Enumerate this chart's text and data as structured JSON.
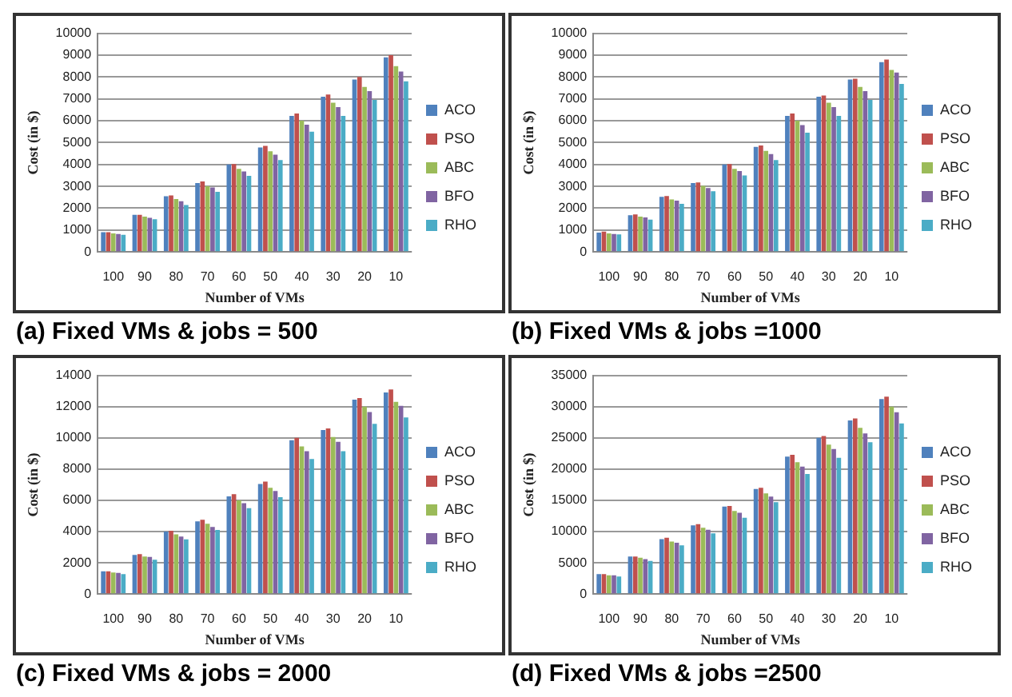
{
  "chart_data": [
    {
      "type": "bar",
      "title": "(a) Fixed VMs & jobs = 500",
      "xlabel": "Number of VMs",
      "ylabel": "Cost (in $)",
      "categories": [
        "100",
        "90",
        "80",
        "70",
        "60",
        "50",
        "40",
        "30",
        "20",
        "10"
      ],
      "ylim": [
        0,
        10000
      ],
      "yticks": [
        0,
        1000,
        2000,
        3000,
        4000,
        5000,
        6000,
        7000,
        8000,
        9000,
        10000
      ],
      "grid": "y",
      "legend": "right",
      "series": [
        {
          "name": "ACO",
          "color": "#4f81bd",
          "values": [
            900,
            1700,
            2550,
            3150,
            4000,
            4780,
            6220,
            7100,
            7880,
            8900
          ]
        },
        {
          "name": "PSO",
          "color": "#c0504d",
          "values": [
            900,
            1700,
            2580,
            3220,
            4020,
            4850,
            6330,
            7200,
            8000,
            9000
          ]
        },
        {
          "name": "ABC",
          "color": "#9bbb59",
          "values": [
            850,
            1620,
            2420,
            3000,
            3800,
            4600,
            6000,
            6820,
            7550,
            8500
          ]
        },
        {
          "name": "BFO",
          "color": "#8064a2",
          "values": [
            820,
            1560,
            2320,
            2950,
            3680,
            4450,
            5820,
            6620,
            7350,
            8250
          ]
        },
        {
          "name": "RHO",
          "color": "#4bacc6",
          "values": [
            780,
            1500,
            2150,
            2750,
            3480,
            4200,
            5500,
            6220,
            6950,
            7800
          ]
        }
      ]
    },
    {
      "type": "bar",
      "title": "(b) Fixed VMs & jobs =1000",
      "xlabel": "Number of VMs",
      "ylabel": "Cost (in $)",
      "categories": [
        "100",
        "90",
        "80",
        "70",
        "60",
        "50",
        "40",
        "30",
        "20",
        "10"
      ],
      "ylim": [
        0,
        10000
      ],
      "yticks": [
        0,
        1000,
        2000,
        3000,
        4000,
        5000,
        6000,
        7000,
        8000,
        9000,
        10000
      ],
      "grid": "y",
      "legend": "right",
      "series": [
        {
          "name": "ACO",
          "color": "#4f81bd",
          "values": [
            880,
            1680,
            2520,
            3150,
            4000,
            4800,
            6220,
            7100,
            7880,
            8680
          ]
        },
        {
          "name": "PSO",
          "color": "#c0504d",
          "values": [
            930,
            1720,
            2560,
            3180,
            4020,
            4870,
            6330,
            7150,
            7920,
            8800
          ]
        },
        {
          "name": "ABC",
          "color": "#9bbb59",
          "values": [
            850,
            1620,
            2400,
            3020,
            3800,
            4620,
            6000,
            6820,
            7550,
            8320
          ]
        },
        {
          "name": "BFO",
          "color": "#8064a2",
          "values": [
            820,
            1580,
            2350,
            2920,
            3700,
            4480,
            5800,
            6620,
            7350,
            8200
          ]
        },
        {
          "name": "RHO",
          "color": "#4bacc6",
          "values": [
            800,
            1480,
            2200,
            2780,
            3500,
            4200,
            5450,
            6220,
            6950,
            7680
          ]
        }
      ]
    },
    {
      "type": "bar",
      "title": "(c) Fixed VMs & jobs = 2000",
      "xlabel": "Number of VMs",
      "ylabel": "Cost (in $)",
      "categories": [
        "100",
        "90",
        "80",
        "70",
        "60",
        "50",
        "40",
        "30",
        "20",
        "10"
      ],
      "ylim": [
        0,
        14000
      ],
      "yticks": [
        0,
        2000,
        4000,
        6000,
        8000,
        10000,
        12000,
        14000
      ],
      "grid": "y",
      "legend": "right",
      "series": [
        {
          "name": "ACO",
          "color": "#4f81bd",
          "values": [
            1450,
            2500,
            4000,
            4650,
            6250,
            7050,
            9850,
            10500,
            12450,
            12900
          ]
        },
        {
          "name": "PSO",
          "color": "#c0504d",
          "values": [
            1450,
            2560,
            4050,
            4750,
            6400,
            7200,
            10000,
            10600,
            12550,
            13100
          ]
        },
        {
          "name": "ABC",
          "color": "#9bbb59",
          "values": [
            1380,
            2400,
            3820,
            4500,
            6000,
            6800,
            9450,
            10050,
            12000,
            12300
          ]
        },
        {
          "name": "BFO",
          "color": "#8064a2",
          "values": [
            1350,
            2380,
            3680,
            4300,
            5820,
            6600,
            9150,
            9750,
            11650,
            12050
          ]
        },
        {
          "name": "RHO",
          "color": "#4bacc6",
          "values": [
            1280,
            2200,
            3500,
            4100,
            5500,
            6200,
            8650,
            9150,
            10900,
            11300
          ]
        }
      ]
    },
    {
      "type": "bar",
      "title": "(d) Fixed VMs & jobs =2500",
      "xlabel": "Number of VMs",
      "ylabel": "Cost (in $)",
      "categories": [
        "100",
        "90",
        "80",
        "70",
        "60",
        "50",
        "40",
        "30",
        "20",
        "10"
      ],
      "ylim": [
        0,
        35000
      ],
      "yticks": [
        0,
        5000,
        10000,
        15000,
        20000,
        25000,
        30000,
        35000
      ],
      "grid": "y",
      "legend": "right",
      "series": [
        {
          "name": "ACO",
          "color": "#4f81bd",
          "values": [
            3200,
            6000,
            8800,
            11000,
            14000,
            16800,
            22000,
            25000,
            27800,
            31200
          ]
        },
        {
          "name": "PSO",
          "color": "#c0504d",
          "values": [
            3200,
            6000,
            9000,
            11200,
            14100,
            17000,
            22300,
            25300,
            28100,
            31600
          ]
        },
        {
          "name": "ABC",
          "color": "#9bbb59",
          "values": [
            3000,
            5800,
            8400,
            10600,
            13300,
            16100,
            21100,
            23900,
            26600,
            30000
          ]
        },
        {
          "name": "BFO",
          "color": "#8064a2",
          "values": [
            3000,
            5600,
            8200,
            10300,
            13000,
            15600,
            20400,
            23200,
            25700,
            29100
          ]
        },
        {
          "name": "RHO",
          "color": "#4bacc6",
          "values": [
            2800,
            5300,
            7800,
            9700,
            12200,
            14700,
            19200,
            21800,
            24300,
            27300
          ]
        }
      ]
    }
  ]
}
